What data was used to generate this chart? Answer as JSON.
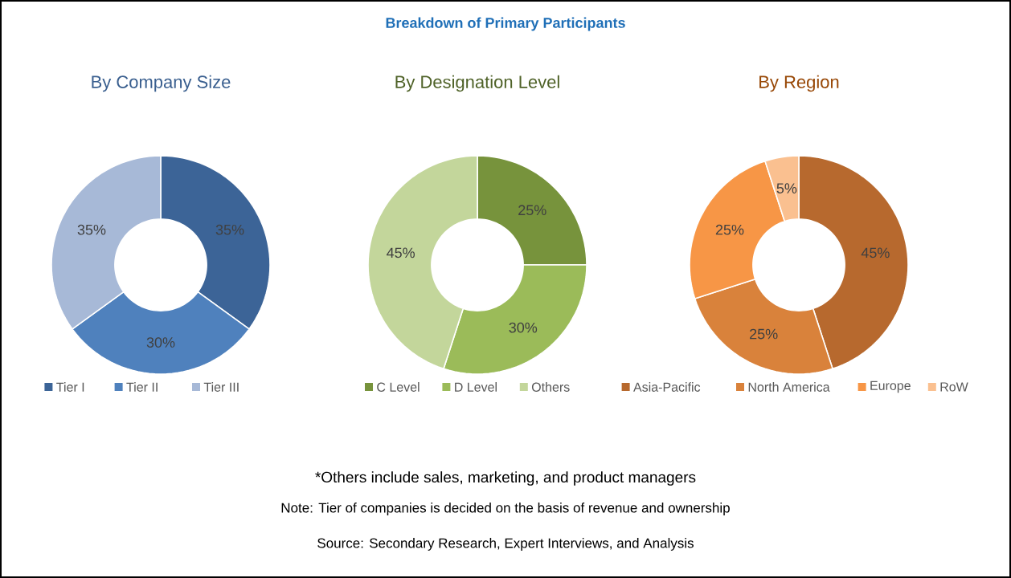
{
  "chart_data": [
    {
      "type": "donut",
      "title": "By Company Size",
      "categories": [
        "Tier I",
        "Tier II",
        "Tier III"
      ],
      "values": [
        35,
        30,
        35
      ],
      "value_labels": [
        "35%",
        "30%",
        "35%"
      ],
      "colors": [
        "#3c6497",
        "#4f81bd",
        "#a7b9d7"
      ],
      "legend": "bottom"
    },
    {
      "type": "donut",
      "title": "By Designation Level",
      "categories": [
        "C Level",
        "D Level",
        "Others"
      ],
      "values": [
        25,
        30,
        45
      ],
      "value_labels": [
        "25%",
        "30%",
        "45%"
      ],
      "colors": [
        "#77933c",
        "#9bbb59",
        "#c3d69b"
      ],
      "legend": "bottom"
    },
    {
      "type": "donut",
      "title": "By Region",
      "categories": [
        "Asia-Pacific",
        "North America",
        "Europe",
        "RoW"
      ],
      "values": [
        45,
        25,
        25,
        5
      ],
      "value_labels": [
        "45%",
        "25%",
        "25%",
        "5%"
      ],
      "colors": [
        "#b7692e",
        "#d9823b",
        "#f79646",
        "#fac090"
      ],
      "legend": "bottom"
    },
    {
      "type": "other",
      "title": "Breakdown of Primary Participants",
      "annotations": [
        "*Others include sales, marketing, and product managers",
        "Note: Tier of companies is decided on the basis of revenue and ownership",
        "Source: Secondary Research, Expert Interviews, and Analysis"
      ]
    }
  ]
}
